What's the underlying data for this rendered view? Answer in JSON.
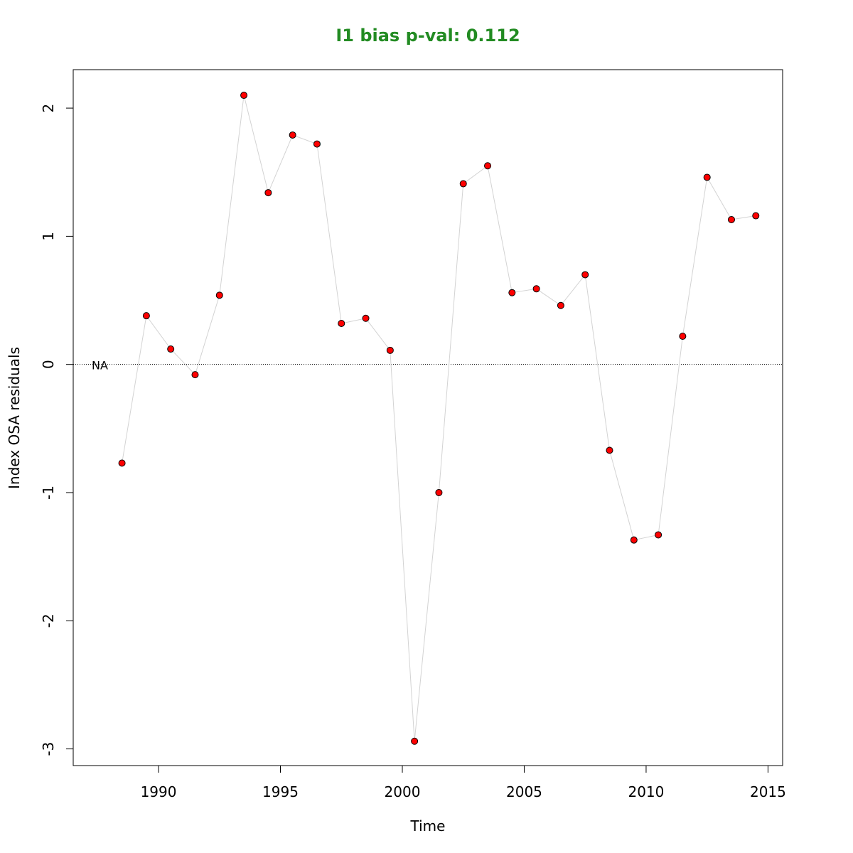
{
  "colors": {
    "title": "#228b22",
    "point_fill": "#ff0000",
    "point_stroke": "#000000",
    "line": "#d3d3d3",
    "zero_line": "#000000"
  },
  "chart_data": {
    "type": "scatter",
    "title": "I1 bias p-val: 0.112",
    "xlabel": "Time",
    "ylabel": "Index OSA residuals",
    "xlim": [
      1986.5,
      2015.6
    ],
    "ylim": [
      -3.13,
      2.3
    ],
    "xticks": [
      1990,
      1995,
      2000,
      2005,
      2010,
      2015
    ],
    "yticks": [
      -3,
      -2,
      -1,
      0,
      1,
      2
    ],
    "reference_line": {
      "y": 0,
      "style": "dotted"
    },
    "annotation": "NA",
    "grid": false,
    "connect_points": true,
    "series": [
      {
        "x": [
          1988.5,
          1989.5,
          1990.5,
          1991.5,
          1992.5,
          1993.5,
          1994.5,
          1995.5,
          1996.5,
          1997.5,
          1998.5,
          1999.5,
          2000.5,
          2001.5,
          2002.5,
          2003.5,
          2004.5,
          2005.5,
          2006.5,
          2007.5,
          2008.5,
          2009.5,
          2010.5,
          2011.5,
          2012.5,
          2013.5,
          2014.5
        ],
        "y": [
          -0.77,
          0.38,
          0.12,
          -0.08,
          0.54,
          2.1,
          1.34,
          1.79,
          1.72,
          0.32,
          0.36,
          0.11,
          -2.94,
          -1.0,
          1.41,
          1.55,
          0.56,
          0.59,
          0.46,
          0.7,
          -0.67,
          -1.37,
          -1.33,
          0.22,
          1.46,
          1.13,
          1.16
        ]
      }
    ]
  }
}
